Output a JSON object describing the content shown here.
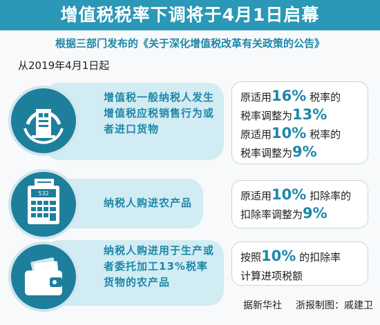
{
  "header": {
    "title": "增值税税率下调将于4月1日启幕",
    "subtitle": "根据三部门发布的《关于深化增值税改革有关政策的公告》",
    "effective_date": "从2019年4月1日起"
  },
  "items": [
    {
      "icon": "tax-emblem-icon",
      "description": "增值税一般纳税人发生增值税应税销售行为或者进口货物",
      "results": [
        {
          "pre": "原适用",
          "from": "16%",
          "mid": "税率的",
          "line2_pre": "税率调整为",
          "to": "13%"
        },
        {
          "pre": "原适用",
          "from": "10%",
          "mid": "税率的",
          "line2_pre": "税率调整为",
          "to": "9%"
        }
      ]
    },
    {
      "icon": "calculator-icon",
      "description": "纳税人购进农产品",
      "calc_display": "532",
      "results": [
        {
          "pre": "原适用",
          "from": "10%",
          "mid": "扣除率的",
          "line2_pre": "扣除率调整为",
          "to": "9%"
        }
      ]
    },
    {
      "icon": "wallet-icon",
      "description": "纳税人购进用于生产或者委托加工13%税率货物的农产品",
      "results": [
        {
          "pre": "按照",
          "from": "10%",
          "mid": "的扣除率",
          "line2_pre": "计算进项税额",
          "to": ""
        }
      ]
    }
  ],
  "source": {
    "agency": "据新华社",
    "credit": "浙报制图：戚建卫"
  },
  "colors": {
    "accent": "#2a98b6",
    "highlight": "#1e87a8",
    "pill": "#d2ecf3",
    "circle": "#1e7f9c"
  }
}
